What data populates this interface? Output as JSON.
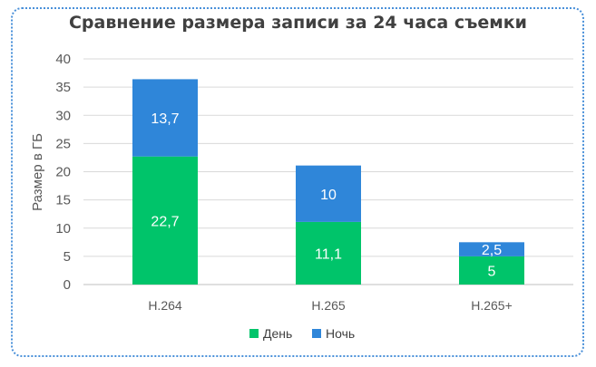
{
  "chart_data": {
    "type": "bar",
    "stacked": true,
    "title": "Сравнение размера записи за 24 часа съемки",
    "xlabel": "",
    "ylabel": "Размер в ГБ",
    "ylim": [
      0,
      40
    ],
    "yticks": [
      "0",
      "5",
      "10",
      "15",
      "20",
      "25",
      "30",
      "35",
      "40"
    ],
    "grid": true,
    "legend_position": "bottom",
    "categories": [
      "H.264",
      "H.265",
      "H.265+"
    ],
    "series": [
      {
        "name": "День",
        "color": "#00c46a",
        "values": [
          22.7,
          11.1,
          5
        ],
        "labels": [
          "22,7",
          "11,1",
          "5"
        ]
      },
      {
        "name": "Ночь",
        "color": "#2f86d9",
        "values": [
          13.7,
          10,
          2.5
        ],
        "labels": [
          "13,7",
          "10",
          "2,5"
        ]
      }
    ]
  }
}
